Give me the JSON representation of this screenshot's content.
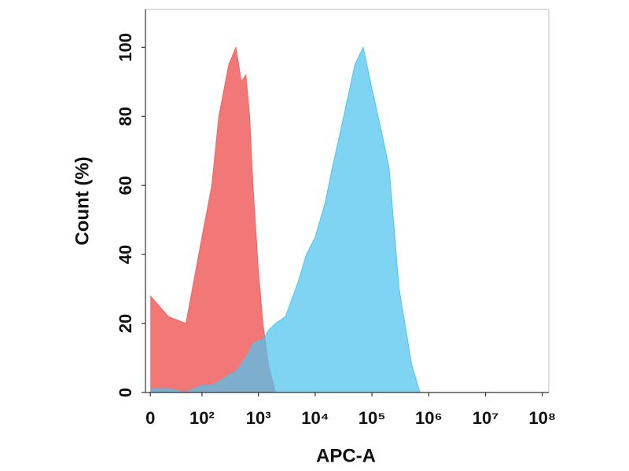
{
  "chart_data": {
    "type": "area",
    "x_label": "APC-A",
    "y_label": "Count  (%)",
    "xscale": "biexponential",
    "x": [
      0,
      20,
      50,
      100,
      150,
      200,
      300,
      400,
      500,
      600,
      700,
      800,
      1000,
      1200,
      1500,
      2000,
      3000,
      5000,
      7000,
      10000,
      15000,
      20000,
      30000,
      50000,
      70000,
      100000,
      150000,
      200000,
      300000,
      500000,
      700000,
      1000000
    ],
    "series": [
      {
        "color": "#f06464",
        "values": [
          28,
          22,
          20,
          45,
          60,
          80,
          95,
          100,
          90,
          92,
          80,
          60,
          35,
          20,
          8,
          0,
          0,
          0,
          0,
          0,
          0,
          0,
          0,
          0,
          0,
          0,
          0,
          0,
          0,
          0,
          0,
          0
        ]
      },
      {
        "color": "#4fc3ee",
        "values": [
          1,
          1,
          0,
          2,
          2,
          3,
          5,
          6,
          8,
          10,
          12,
          14,
          15,
          15,
          18,
          20,
          22,
          32,
          40,
          45,
          55,
          65,
          78,
          95,
          100,
          88,
          75,
          65,
          30,
          8,
          0,
          0
        ]
      }
    ],
    "xlim": [
      -5,
      130000000
    ],
    "ylim": [
      0,
      111
    ],
    "xticks": [
      {
        "value": 0,
        "label": "0"
      },
      {
        "value": 100,
        "label": "10²"
      },
      {
        "value": 1000,
        "label": "10³"
      },
      {
        "value": 10000,
        "label": "10⁴"
      },
      {
        "value": 100000,
        "label": "10⁵"
      },
      {
        "value": 1000000,
        "label": "10⁶"
      },
      {
        "value": 10000000,
        "label": "10⁷"
      },
      {
        "value": 100000000,
        "label": "10⁸"
      }
    ],
    "yticks": [
      0,
      20,
      40,
      60,
      80,
      100
    ]
  }
}
